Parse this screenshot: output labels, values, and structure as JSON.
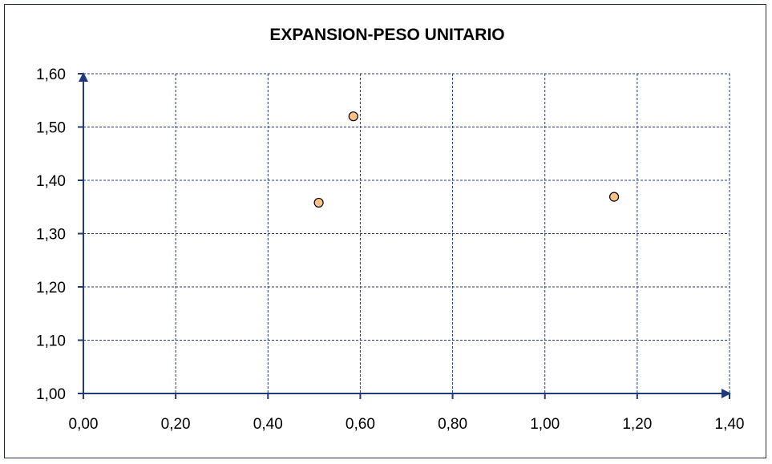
{
  "chart_data": {
    "type": "scatter",
    "title": "EXPANSION-PESO UNITARIO",
    "xlabel": "",
    "ylabel": "",
    "xlim": [
      0,
      1.4
    ],
    "ylim": [
      1.0,
      1.6
    ],
    "x_ticks": [
      "0,00",
      "0,20",
      "0,40",
      "0,60",
      "0,80",
      "1,00",
      "1,20",
      "1,40"
    ],
    "y_ticks": [
      "1,00",
      "1,10",
      "1,20",
      "1,30",
      "1,40",
      "1,50",
      "1,60"
    ],
    "grid": true,
    "legend": "none",
    "series": [
      {
        "x": [
          0.51,
          0.585,
          1.15
        ],
        "y": [
          1.358,
          1.52,
          1.369
        ]
      }
    ],
    "colors": {
      "marker_fill": "#f9c08c",
      "marker_edge": "#000000",
      "grid": "#1f3a7a",
      "axis": "#1f3a7a",
      "frame": "#1f2d4d"
    }
  }
}
